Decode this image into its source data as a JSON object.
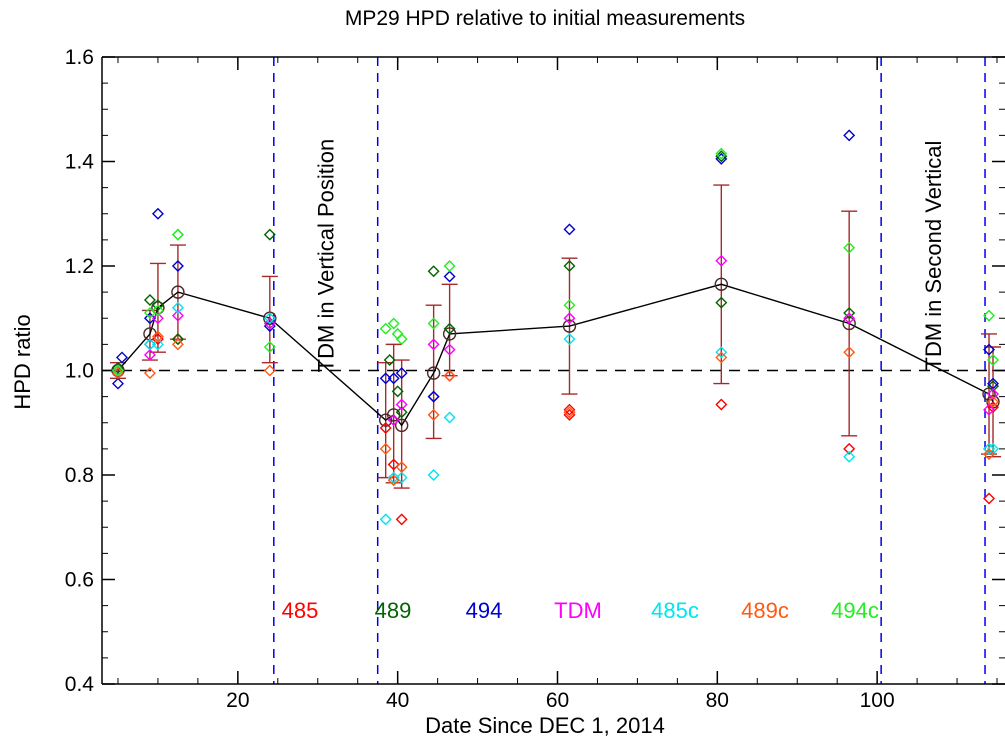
{
  "chart_data": {
    "type": "scatter",
    "title": "MP29 HPD relative to initial measurements",
    "xlabel": "Date Since DEC 1, 2014",
    "ylabel": "HPD ratio",
    "xlim": [
      3,
      116
    ],
    "ylim": [
      0.4,
      1.6
    ],
    "xticks": [
      20,
      40,
      60,
      80,
      100
    ],
    "xtick_labels": [
      "20",
      "40",
      "60",
      "80",
      "100"
    ],
    "xminor_step": 5,
    "yticks": [
      0.4,
      0.6,
      0.8,
      1.0,
      1.2,
      1.4,
      1.6
    ],
    "ytick_labels": [
      "0.4",
      "0.6",
      "0.8",
      "1.0",
      "1.2",
      "1.4",
      "1.6"
    ],
    "yminor_step": 0.05,
    "grid": false,
    "reference_line": {
      "y": 1.0,
      "style": "dashed",
      "color": "#000000"
    },
    "event_lines": [
      {
        "x": 24.5,
        "color": "#0000ee"
      },
      {
        "x": 37.5,
        "color": "#0000ee"
      },
      {
        "x": 100.5,
        "color": "#0000ee"
      },
      {
        "x": 113.5,
        "color": "#0000ee"
      }
    ],
    "annotations": [
      {
        "text": "TDM in Vertical Position",
        "x": 31,
        "y": 1.22,
        "rotation": -90
      },
      {
        "text": "TDM in Second Vertical",
        "x": 107,
        "y": 1.22,
        "rotation": -90
      }
    ],
    "legend_placement": "bottom",
    "series": [
      {
        "name": "485",
        "color": "#ff0000",
        "marker": "diamond",
        "x": [
          5,
          9,
          10,
          12.5,
          38.5,
          39.5,
          40.5,
          44.5,
          46.5,
          61.5,
          61.5,
          80.5,
          96.5,
          114,
          114.5
        ],
        "y": [
          0.995,
          1.05,
          1.06,
          1.06,
          0.89,
          0.82,
          0.715,
          0.95,
          0.99,
          0.915,
          0.925,
          0.935,
          0.85,
          0.755,
          0.93
        ]
      },
      {
        "name": "489",
        "color": "#006400",
        "marker": "diamond",
        "x": [
          5,
          9,
          10,
          12.5,
          24,
          39,
          40,
          40.5,
          44.5,
          46.5,
          61.5,
          80.5,
          80.5,
          96.5,
          114,
          114.5
        ],
        "y": [
          1.005,
          1.135,
          1.125,
          1.06,
          1.26,
          1.02,
          0.96,
          0.92,
          1.19,
          1.08,
          1.2,
          1.13,
          1.41,
          1.11,
          0.85,
          0.97
        ]
      },
      {
        "name": "494",
        "color": "#0000cd",
        "marker": "diamond",
        "x": [
          5,
          5.5,
          9,
          10,
          12.5,
          24,
          38.5,
          39.5,
          40.5,
          44.5,
          46.5,
          61.5,
          80.5,
          96.5,
          114,
          114.5
        ],
        "y": [
          0.975,
          1.025,
          1.1,
          1.3,
          1.2,
          1.085,
          0.985,
          0.985,
          0.995,
          0.95,
          1.18,
          1.27,
          1.405,
          1.45,
          1.04,
          0.975
        ]
      },
      {
        "name": "TDM",
        "color": "#ff00ff",
        "marker": "diamond",
        "x": [
          5,
          9,
          10,
          12.5,
          24,
          39.5,
          40.5,
          44.5,
          46.5,
          61.5,
          80.5,
          96.5,
          114,
          114.5
        ],
        "y": [
          1.0,
          1.03,
          1.1,
          1.105,
          1.09,
          0.905,
          0.935,
          1.05,
          1.04,
          1.1,
          1.21,
          1.1,
          0.925,
          0.955
        ]
      },
      {
        "name": "485c",
        "color": "#00e5ee",
        "marker": "diamond",
        "x": [
          5,
          9,
          10,
          12.5,
          24,
          38.5,
          39.5,
          40.5,
          44.5,
          46.5,
          61.5,
          80.5,
          96.5,
          114,
          114.5
        ],
        "y": [
          1.0,
          1.05,
          1.05,
          1.12,
          1.1,
          0.715,
          0.795,
          0.795,
          0.8,
          0.91,
          1.06,
          1.035,
          0.835,
          0.85,
          0.85
        ]
      },
      {
        "name": "489c",
        "color": "#ff5a14",
        "marker": "diamond",
        "x": [
          5,
          9,
          10,
          12.5,
          24,
          38.5,
          39.5,
          40.5,
          44.5,
          46.5,
          61.5,
          80.5,
          96.5,
          114,
          114.5
        ],
        "y": [
          0.995,
          0.995,
          1.065,
          1.05,
          1.0,
          0.85,
          0.79,
          0.815,
          0.915,
          0.99,
          0.92,
          1.025,
          1.035,
          0.84,
          0.94
        ]
      },
      {
        "name": "494c",
        "color": "#22ee22",
        "marker": "diamond",
        "x": [
          5,
          9,
          10,
          12.5,
          12.5,
          24,
          38.5,
          39.5,
          40,
          40.5,
          44.5,
          46.5,
          61.5,
          80.5,
          96.5,
          114,
          114.5
        ],
        "y": [
          1.0,
          1.11,
          1.115,
          1.26,
          1.26,
          1.045,
          1.08,
          1.09,
          1.07,
          1.06,
          1.09,
          1.2,
          1.125,
          1.415,
          1.235,
          1.105,
          1.02
        ]
      },
      {
        "name": "",
        "color": "#000000",
        "marker": "circle",
        "line": true,
        "x": [
          5,
          9,
          10,
          12.5,
          24,
          38.5,
          39.5,
          40.5,
          44.5,
          46.5,
          61.5,
          80.5,
          96.5,
          114,
          114.5
        ],
        "y": [
          1.0,
          1.07,
          1.12,
          1.15,
          1.1,
          0.905,
          0.915,
          0.895,
          0.995,
          1.07,
          1.085,
          1.165,
          1.09,
          0.955,
          0.94
        ],
        "error_color": "#a52a2a",
        "err_low": [
          0.985,
          1.02,
          1.035,
          1.06,
          1.015,
          0.795,
          0.785,
          0.775,
          0.87,
          0.99,
          0.955,
          0.975,
          0.875,
          0.84,
          0.835
        ],
        "err_high": [
          1.015,
          1.115,
          1.205,
          1.24,
          1.18,
          1.015,
          1.05,
          1.02,
          1.125,
          1.165,
          1.215,
          1.355,
          1.305,
          1.07,
          1.045
        ]
      }
    ]
  }
}
